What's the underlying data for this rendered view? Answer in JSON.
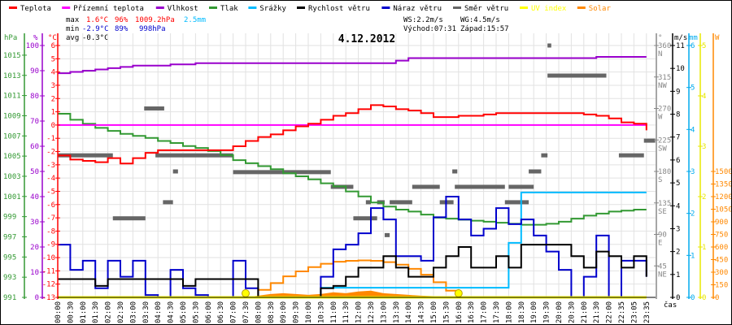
{
  "legend": [
    {
      "label": "Teplota",
      "color": "#ff0000"
    },
    {
      "label": "Přízemní teplota",
      "color": "#ff00ff"
    },
    {
      "label": "Vlhkost",
      "color": "#9900cc"
    },
    {
      "label": "Tlak",
      "color": "#339933"
    },
    {
      "label": "Srážky",
      "color": "#00bbff"
    },
    {
      "label": "Rychlost větru",
      "color": "#000000"
    },
    {
      "label": "Náraz větru",
      "color": "#0000cc"
    },
    {
      "label": "Směr větru",
      "color": "#666666"
    },
    {
      "label": "UV index",
      "color": "#ffff00"
    },
    {
      "label": "Solar",
      "color": "#ff8800"
    }
  ],
  "stats": {
    "max_label": "max",
    "max_temp": "1.6°C",
    "max_hum": "96%",
    "max_press": "1009.2hPa",
    "max_rain": "2.5mm",
    "min_label": "min",
    "min_temp": "-2.9°C",
    "min_hum": "89%",
    "min_press": "998hPa",
    "avg_label": "avg",
    "avg_temp": "-0.3°C",
    "ws": "WS:2.2m/s",
    "wg": "WG:4.5m/s",
    "sunrise": "Východ:07:31",
    "sunset": "Západ:15:57"
  },
  "chart_data": {
    "type": "line",
    "title": "4.12.2012",
    "xlabel": "čas",
    "categories": [
      "00:00",
      "00:30",
      "01:00",
      "01:30",
      "02:00",
      "02:30",
      "03:00",
      "03:30",
      "04:00",
      "04:30",
      "05:00",
      "05:30",
      "06:00",
      "06:30",
      "07:00",
      "07:30",
      "08:00",
      "08:30",
      "09:00",
      "09:30",
      "10:00",
      "10:30",
      "11:00",
      "11:30",
      "12:00",
      "12:30",
      "13:00",
      "13:30",
      "14:00",
      "14:30",
      "15:00",
      "15:30",
      "16:00",
      "16:30",
      "17:00",
      "17:30",
      "18:00",
      "18:30",
      "19:00",
      "19:30",
      "20:00",
      "20:30",
      "21:00",
      "21:30",
      "22:00",
      "22:35",
      "23:05",
      "23:35"
    ],
    "axes": {
      "pressure": {
        "unit": "hPa",
        "range": [
          991,
          1015.96
        ],
        "ticks": [
          991,
          993,
          995,
          997,
          999,
          1001,
          1003,
          1005,
          1007,
          1009,
          1011,
          1013,
          1015
        ]
      },
      "humidity": {
        "unit": "%",
        "range": [
          0,
          100
        ],
        "ticks": [
          0,
          10,
          20,
          30,
          40,
          50,
          60,
          70,
          80,
          90,
          100
        ]
      },
      "temperature": {
        "unit": "°C",
        "range": [
          -13,
          6
        ],
        "ticks": [
          -13,
          -12,
          -11,
          -10,
          -9,
          -8,
          -7,
          -6,
          -5,
          -4,
          -3,
          -2,
          -1,
          0,
          1,
          2,
          3,
          4,
          5,
          6
        ]
      },
      "direction": {
        "unit": "°",
        "range": [
          0,
          360
        ],
        "ticks": [
          {
            "v": 45,
            "d": "NE"
          },
          {
            "v": 90,
            "d": "E"
          },
          {
            "v": 135,
            "d": "SE"
          },
          {
            "v": 180,
            "d": "S"
          },
          {
            "v": 225,
            "d": "SW"
          },
          {
            "v": 270,
            "d": "W"
          },
          {
            "v": 315,
            "d": "NW"
          },
          {
            "v": 360,
            "d": "N"
          }
        ]
      },
      "wind": {
        "unit": "m/s",
        "range": [
          0,
          11
        ],
        "ticks": [
          0,
          1,
          2,
          3,
          4,
          5,
          6,
          7,
          8,
          9,
          10,
          11
        ]
      },
      "rain": {
        "unit": "mm",
        "range": [
          0,
          6
        ],
        "ticks": [
          0,
          1,
          2,
          3,
          4,
          5,
          6
        ]
      },
      "uv": {
        "unit": "",
        "range": [
          0,
          5
        ],
        "ticks": [
          0,
          1,
          2,
          3,
          4,
          5
        ]
      },
      "solar": {
        "unit": "W",
        "range": [
          0,
          3000
        ],
        "ticks": [
          0,
          150,
          300,
          450,
          600,
          750,
          900,
          1050,
          1200,
          1350,
          1500
        ]
      }
    },
    "series": [
      {
        "name": "Teplota",
        "axis": "temperature",
        "color": "#ff0000",
        "values": [
          -2.3,
          -2.6,
          -2.7,
          -2.8,
          -2.5,
          -2.9,
          -2.5,
          -2.1,
          -1.9,
          -1.9,
          -1.9,
          -1.9,
          -1.9,
          -1.9,
          -1.6,
          -1.2,
          -0.9,
          -0.7,
          -0.4,
          -0.1,
          0.1,
          0.4,
          0.7,
          0.9,
          1.2,
          1.5,
          1.4,
          1.2,
          1.1,
          0.9,
          0.6,
          0.6,
          0.7,
          0.7,
          0.8,
          0.9,
          0.9,
          0.9,
          0.9,
          0.9,
          0.9,
          0.9,
          0.8,
          0.7,
          0.5,
          0.2,
          0.1,
          -0.4
        ]
      },
      {
        "name": "Přízemní teplota",
        "axis": "temperature",
        "color": "#ff00ff",
        "values": [
          0,
          0,
          0,
          0,
          0,
          0,
          0,
          0,
          0,
          0,
          0,
          0,
          0,
          0,
          0,
          0,
          0,
          0,
          0,
          0,
          0,
          0,
          0,
          0,
          0,
          0,
          0,
          0,
          0,
          0,
          0,
          0,
          0,
          0,
          0,
          0,
          0,
          0,
          0,
          0,
          0,
          0,
          0,
          0,
          0,
          0,
          0,
          0
        ]
      },
      {
        "name": "Vlhkost",
        "axis": "humidity",
        "color": "#9900cc",
        "values": [
          89,
          89.5,
          90,
          90.5,
          91,
          91.5,
          92,
          92,
          92,
          92.5,
          92.5,
          93,
          93,
          93,
          93,
          93,
          93,
          93,
          93,
          93,
          93,
          93,
          93,
          93,
          93,
          93,
          93,
          94,
          95,
          95,
          95,
          95,
          95,
          95,
          95,
          95,
          95,
          95,
          95,
          95,
          95,
          95,
          95,
          95.5,
          95.5,
          95.5,
          95.5,
          95.5
        ]
      },
      {
        "name": "Tlak",
        "axis": "pressure",
        "color": "#339933",
        "values": [
          1009.2,
          1008.6,
          1008.2,
          1007.8,
          1007.5,
          1007.2,
          1007.0,
          1006.8,
          1006.5,
          1006.3,
          1006.0,
          1005.8,
          1005.5,
          1005.1,
          1004.6,
          1004.3,
          1004.0,
          1003.7,
          1003.3,
          1003.0,
          1002.7,
          1002.3,
          1002.0,
          1001.5,
          1001.0,
          1000.4,
          1000.0,
          999.7,
          999.5,
          999.2,
          998.9,
          998.8,
          998.7,
          998.6,
          998.5,
          998.4,
          998.3,
          998.2,
          998.2,
          998.3,
          998.5,
          998.8,
          999.1,
          999.3,
          999.5,
          999.6,
          999.7,
          999.7
        ]
      },
      {
        "name": "Srážky",
        "axis": "rain",
        "color": "#00bbff",
        "values": [
          0,
          0,
          0,
          0,
          0,
          0,
          0,
          0,
          0,
          0,
          0,
          0,
          0,
          0,
          0,
          0,
          0,
          0,
          0,
          0,
          0,
          0.23,
          0.23,
          0.23,
          0.23,
          0.23,
          0.23,
          0.23,
          0.23,
          0.23,
          0.23,
          0.23,
          0.23,
          0.23,
          0.23,
          0.23,
          1.3,
          2.5,
          2.5,
          2.5,
          2.5,
          2.5,
          2.5,
          2.5,
          2.5,
          2.5,
          2.5,
          2.5
        ]
      },
      {
        "name": "Rychlost větru",
        "axis": "wind",
        "color": "#000000",
        "values": [
          0.8,
          0.8,
          0.8,
          0.5,
          0.8,
          0.8,
          0.8,
          0.8,
          0.8,
          0.8,
          0.5,
          0.8,
          0.8,
          0.8,
          0.8,
          0.8,
          0,
          0,
          0,
          0,
          0,
          0.4,
          0.5,
          0.9,
          1.3,
          1.3,
          1.8,
          1.3,
          0.9,
          0.9,
          1.3,
          1.8,
          2.2,
          1.3,
          1.3,
          1.8,
          1.3,
          2.3,
          2.3,
          2.3,
          2.3,
          1.8,
          1.3,
          2.0,
          1.8,
          1.3,
          1.8,
          0.9
        ]
      },
      {
        "name": "Náraz větru",
        "axis": "wind",
        "color": "#0000cc",
        "values": [
          2.3,
          1.2,
          1.6,
          0.4,
          1.6,
          0.9,
          1.6,
          0.1,
          0,
          1.2,
          0.4,
          0.1,
          0,
          0,
          1.6,
          0.4,
          0,
          0,
          0,
          0,
          0,
          0.9,
          2.1,
          2.3,
          2.8,
          3.9,
          3.4,
          1.8,
          1.8,
          1.6,
          3.5,
          4.4,
          3.4,
          2.7,
          3.0,
          3.9,
          3.2,
          3.4,
          2.7,
          2.0,
          1.2,
          0,
          0.9,
          2.7,
          0,
          1.6,
          1.6,
          0.9
        ]
      },
      {
        "name": "Solar",
        "axis": "solar",
        "color": "#ff8800",
        "values": [
          null,
          null,
          null,
          null,
          null,
          null,
          null,
          null,
          null,
          null,
          null,
          null,
          null,
          null,
          null,
          0,
          90,
          170,
          250,
          310,
          360,
          400,
          425,
          435,
          440,
          435,
          420,
          390,
          340,
          270,
          180,
          80,
          0,
          null,
          null,
          null,
          null,
          null,
          null,
          null,
          null,
          null,
          null,
          null,
          null,
          null,
          null,
          null
        ]
      },
      {
        "name": "Solar (měřeno)",
        "axis": "solar",
        "color": "#ff8800",
        "fill": true,
        "values": [
          0,
          0,
          0,
          0,
          0,
          0,
          0,
          0,
          0,
          0,
          0,
          0,
          0,
          0,
          0,
          0,
          20,
          40,
          50,
          40,
          30,
          40,
          60,
          50,
          70,
          80,
          50,
          40,
          30,
          20,
          15,
          5,
          0,
          0,
          0,
          0,
          0,
          0,
          0,
          0,
          0,
          0,
          0,
          0,
          0,
          0,
          0,
          0
        ]
      },
      {
        "name": "UV index",
        "axis": "uv",
        "color": "#ffff00",
        "values": [
          0,
          0,
          0,
          0,
          0,
          0,
          0,
          0,
          0,
          0,
          0,
          0,
          0,
          0,
          0,
          0,
          0,
          0,
          0,
          0,
          0,
          0,
          0,
          0,
          0,
          0,
          0,
          0,
          0,
          0,
          0,
          0,
          0,
          0,
          0,
          0,
          0,
          0,
          0,
          0,
          0,
          0,
          0,
          0,
          0,
          0,
          0,
          0
        ]
      }
    ],
    "sun_markers": [
      15,
      32
    ],
    "wind_direction_segments": [
      [
        0,
        4.4,
        203
      ],
      [
        4.4,
        7,
        113
      ],
      [
        6.9,
        8.5,
        270
      ],
      [
        7.8,
        14,
        203
      ],
      [
        9.2,
        9.6,
        180
      ],
      [
        8.4,
        9.2,
        136
      ],
      [
        14,
        21.8,
        179
      ],
      [
        21.8,
        23.6,
        158
      ],
      [
        23.6,
        25.5,
        113
      ],
      [
        24.6,
        25,
        136
      ],
      [
        25.5,
        26.1,
        136
      ],
      [
        26.5,
        28.3,
        136
      ],
      [
        26.1,
        26.5,
        89
      ],
      [
        28.3,
        30.5,
        158
      ],
      [
        30.5,
        31.6,
        136
      ],
      [
        31.5,
        31.9,
        180
      ],
      [
        31.7,
        35.7,
        158
      ],
      [
        35.7,
        37.6,
        136
      ],
      [
        36,
        37.5,
        158
      ],
      [
        37.6,
        38.6,
        180
      ],
      [
        37.5,
        38,
        158
      ],
      [
        39.1,
        39.4,
        360
      ],
      [
        38.6,
        39.1,
        203
      ],
      [
        39.1,
        43.8,
        317
      ],
      [
        44.8,
        46.8,
        203
      ],
      [
        46.8,
        47.7,
        224
      ]
    ]
  }
}
